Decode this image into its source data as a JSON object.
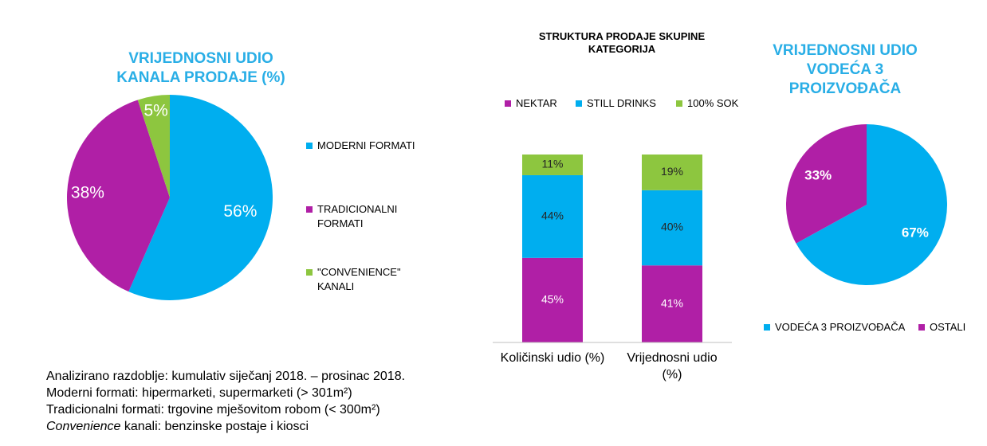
{
  "colors": {
    "blue": "#00AEEF",
    "purple": "#B01FA6",
    "green": "#8DC63F",
    "title_blue": "#29AEE6"
  },
  "chart_data": [
    {
      "type": "pie",
      "title_line1": "VRIJEDNOSNI UDIO",
      "title_line2": "KANALA PRODAJE (%)",
      "slices": [
        {
          "label": "MODERNI FORMATI",
          "label_line1": "MODERNI FORMATI",
          "label_line2": "",
          "value": 56,
          "display": "56%",
          "color": "#00AEEF"
        },
        {
          "label": "TRADICIONALNI FORMATI",
          "label_line1": "TRADICIONALNI",
          "label_line2": "FORMATI",
          "value": 38,
          "display": "38%",
          "color": "#B01FA6"
        },
        {
          "label": "\"CONVENIENCE\" KANALI",
          "label_line1": "\"CONVENIENCE\"",
          "label_line2": "KANALI",
          "value": 5,
          "display": "5%",
          "color": "#8DC63F"
        }
      ],
      "legend_position": "right"
    },
    {
      "type": "bar",
      "stacked": true,
      "title_line1": "STRUKTURA PRODAJE SKUPINE",
      "title_line2": "KATEGORIJA",
      "categories": [
        "Količinski udio (%)",
        "Vrijednosni udio (%)"
      ],
      "category_lines": [
        [
          "Količinski udio (%)"
        ],
        [
          "Vrijednosni udio",
          "(%)"
        ]
      ],
      "series": [
        {
          "name": "NEKTAR",
          "color": "#B01FA6",
          "values": [
            45,
            41
          ],
          "labels": [
            "45%",
            "41%"
          ]
        },
        {
          "name": "STILL DRINKS",
          "color": "#00AEEF",
          "values": [
            44,
            40
          ],
          "labels": [
            "44%",
            "40%"
          ]
        },
        {
          "name": "100% SOK",
          "color": "#8DC63F",
          "values": [
            11,
            19
          ],
          "labels": [
            "11%",
            "19%"
          ]
        }
      ],
      "legend_position": "top",
      "grid": false
    },
    {
      "type": "pie",
      "title_line1": "VRIJEDNOSNI UDIO",
      "title_line2": "VODEĆA 3",
      "title_line3": "PROIZVOĐAČA",
      "slices": [
        {
          "label": "VODEĆA 3 PROIZVOĐAČA",
          "value": 67,
          "display": "67%",
          "color": "#00AEEF"
        },
        {
          "label": "OSTALI",
          "value": 33,
          "display": "33%",
          "color": "#B01FA6"
        }
      ],
      "legend_position": "bottom"
    }
  ],
  "notes": {
    "line1": "Analizirano razdoblje: kumulativ siječanj 2018. – prosinac 2018.",
    "line2": "Moderni formati: hipermarketi, supermarketi (> 301m²)",
    "line3": "Tradicionalni formati: trgovine mješovitom robom (< 300m²)",
    "line4_italic": "Convenience",
    "line4_rest": " kanali: benzinske postaje i kiosci"
  }
}
